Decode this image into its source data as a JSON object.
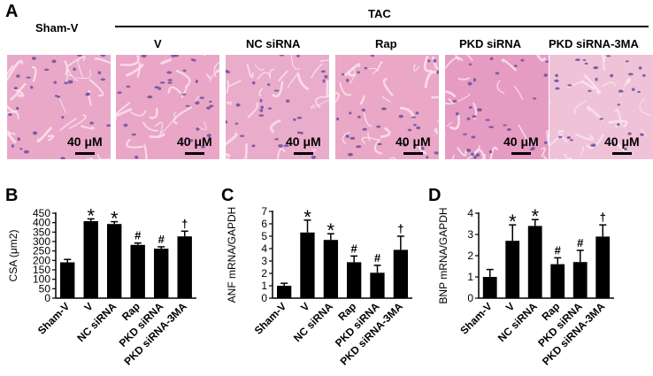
{
  "panelA": {
    "letter": "A",
    "group_label": "TAC",
    "conditions": [
      "Sham-V",
      "V",
      "NC siRNA",
      "Rap",
      "PKD siRNA",
      "PKD siRNA-3MA"
    ],
    "scale_text": "40 μM",
    "tile_colors": [
      "#e9a8c8",
      "#eaa6c6",
      "#eaaccb",
      "#eaa7c6",
      "#e59bc2",
      "#efc2d8"
    ]
  },
  "colors": {
    "bar": "#000000",
    "nucleus": "#6a4fa0",
    "background": "#ffffff"
  },
  "chart_data": [
    {
      "type": "bar",
      "letter": "B",
      "ylabel": "CSA (μm2)",
      "ylim": [
        0,
        450
      ],
      "yticks": [
        0,
        50,
        100,
        150,
        200,
        250,
        300,
        350,
        400,
        450
      ],
      "categories": [
        "Sham-V",
        "V",
        "NC siRNA",
        "Rap",
        "PKD siRNA",
        "PKD siRNA-3MA"
      ],
      "values": [
        190,
        408,
        393,
        282,
        262,
        327
      ],
      "errors": [
        15,
        12,
        12,
        10,
        10,
        28
      ],
      "annotations": [
        "",
        "*",
        "*",
        "#",
        "#",
        "†"
      ]
    },
    {
      "type": "bar",
      "letter": "C",
      "ylabel": "ANF mRNA/GAPDH",
      "ylim": [
        0,
        7
      ],
      "yticks": [
        0,
        1,
        2,
        3,
        4,
        5,
        6,
        7
      ],
      "categories": [
        "Sham-V",
        "V",
        "NC siRNA",
        "Rap",
        "PKD siRNA",
        "PKD siRNA-3MA"
      ],
      "values": [
        1.0,
        5.3,
        4.7,
        2.9,
        2.05,
        3.9
      ],
      "errors": [
        0.2,
        1.0,
        0.5,
        0.5,
        0.6,
        1.1
      ],
      "annotations": [
        "",
        "*",
        "*",
        "#",
        "#",
        "†"
      ]
    },
    {
      "type": "bar",
      "letter": "D",
      "ylabel": "BNP mRNA/GAPDH",
      "ylim": [
        0,
        4
      ],
      "yticks": [
        0,
        1,
        2,
        3,
        4
      ],
      "categories": [
        "Sham-V",
        "V",
        "NC siRNA",
        "Rap",
        "PKD siRNA",
        "PKD siRNA-3MA"
      ],
      "values": [
        1.0,
        2.7,
        3.4,
        1.6,
        1.7,
        2.9
      ],
      "errors": [
        0.35,
        0.75,
        0.3,
        0.3,
        0.55,
        0.55
      ],
      "annotations": [
        "",
        "*",
        "*",
        "#",
        "#",
        "†"
      ]
    }
  ]
}
